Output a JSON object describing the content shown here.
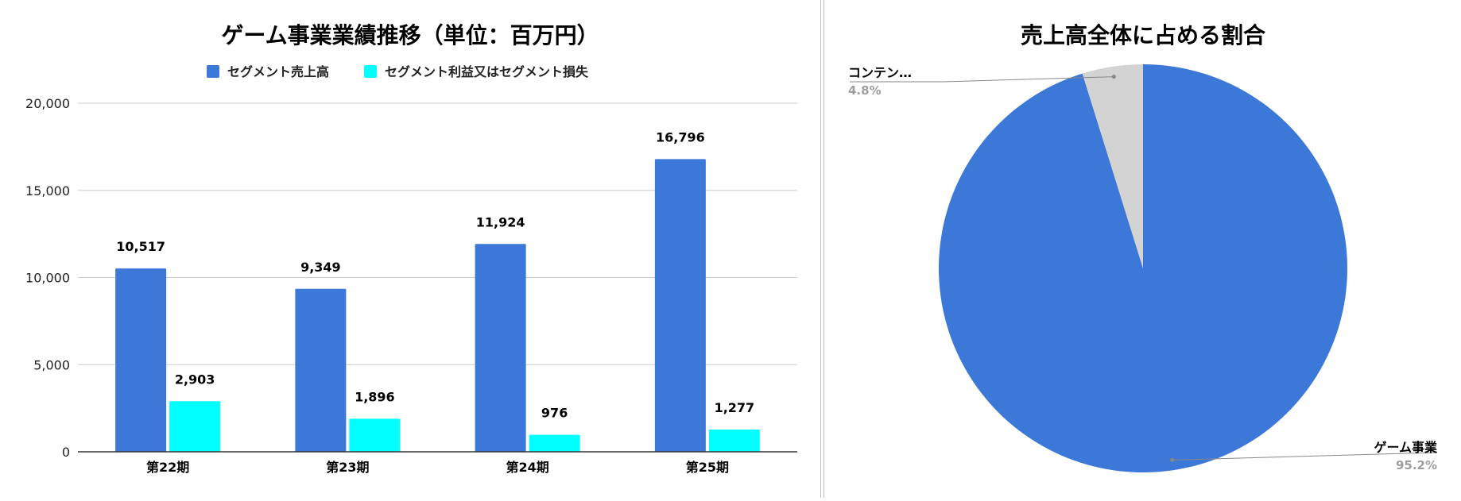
{
  "colors": {
    "sales": "#3c78d8",
    "profit": "#00ffff",
    "other": "#d3d3d3",
    "grid": "#cccccc",
    "axis": "#333333",
    "text": "#000000",
    "muted": "#9e9e9e"
  },
  "chart_data": [
    {
      "type": "bar",
      "title": "ゲーム事業業績推移（単位：百万円）",
      "categories": [
        "第22期",
        "第23期",
        "第24期",
        "第25期"
      ],
      "series": [
        {
          "name": "セグメント売上高",
          "values": [
            10517,
            9349,
            11924,
            16796
          ],
          "labels": [
            "10,517",
            "9,349",
            "11,924",
            "16,796"
          ]
        },
        {
          "name": "セグメント利益又はセグメント損失",
          "values": [
            2903,
            1896,
            976,
            1277
          ],
          "labels": [
            "2,903",
            "1,896",
            "976",
            "1,277"
          ]
        }
      ],
      "ylim": [
        0,
        20000
      ],
      "yticks": [
        0,
        5000,
        10000,
        15000,
        20000
      ],
      "ytick_labels": [
        "0",
        "5,000",
        "10,000",
        "15,000",
        "20,000"
      ],
      "legend_position": "top",
      "grid": true
    },
    {
      "type": "pie",
      "title": "売上高全体に占める割合",
      "slices": [
        {
          "name": "ゲーム事業",
          "value": 95.2,
          "label": "95.2%"
        },
        {
          "name": "コンテン…",
          "value": 4.8,
          "label": "4.8%"
        }
      ],
      "legend_position": "none"
    }
  ]
}
